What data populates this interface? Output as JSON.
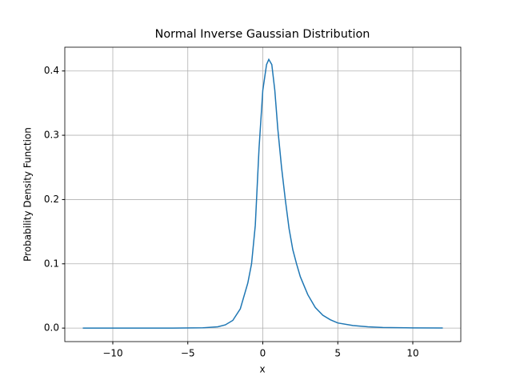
{
  "chart_data": {
    "type": "line",
    "title": "Normal Inverse Gaussian Distribution",
    "x_label": "x",
    "y_label": "Probability Density Function",
    "x": [
      -12,
      -10,
      -8,
      -6,
      -4,
      -3,
      -2.5,
      -2,
      -1.5,
      -1,
      -0.75,
      -0.5,
      -0.25,
      0,
      0.25,
      0.4,
      0.6,
      0.8,
      1,
      1.25,
      1.5,
      1.75,
      2,
      2.25,
      2.5,
      3,
      3.5,
      4,
      4.5,
      5,
      6,
      7,
      8,
      10,
      12
    ],
    "series": [
      {
        "color": "#1f77b4",
        "values": [
          0,
          0,
          0,
          0,
          0.0005,
          0.002,
          0.005,
          0.012,
          0.03,
          0.07,
          0.1,
          0.16,
          0.28,
          0.37,
          0.41,
          0.418,
          0.41,
          0.37,
          0.31,
          0.25,
          0.2,
          0.155,
          0.122,
          0.1,
          0.08,
          0.052,
          0.032,
          0.02,
          0.013,
          0.008,
          0.004,
          0.002,
          0.001,
          0.0003,
          0.0001
        ]
      }
    ],
    "xlim": [
      -13.2,
      13.2
    ],
    "ylim": [
      -0.021,
      0.437
    ],
    "xticks": [
      {
        "value": -10,
        "label": "−10"
      },
      {
        "value": -5,
        "label": "−5"
      },
      0,
      5,
      10
    ],
    "yticks": [
      {
        "value": 0,
        "label": "0.0"
      },
      0.1,
      0.2,
      0.3,
      0.4
    ],
    "grid": true
  }
}
